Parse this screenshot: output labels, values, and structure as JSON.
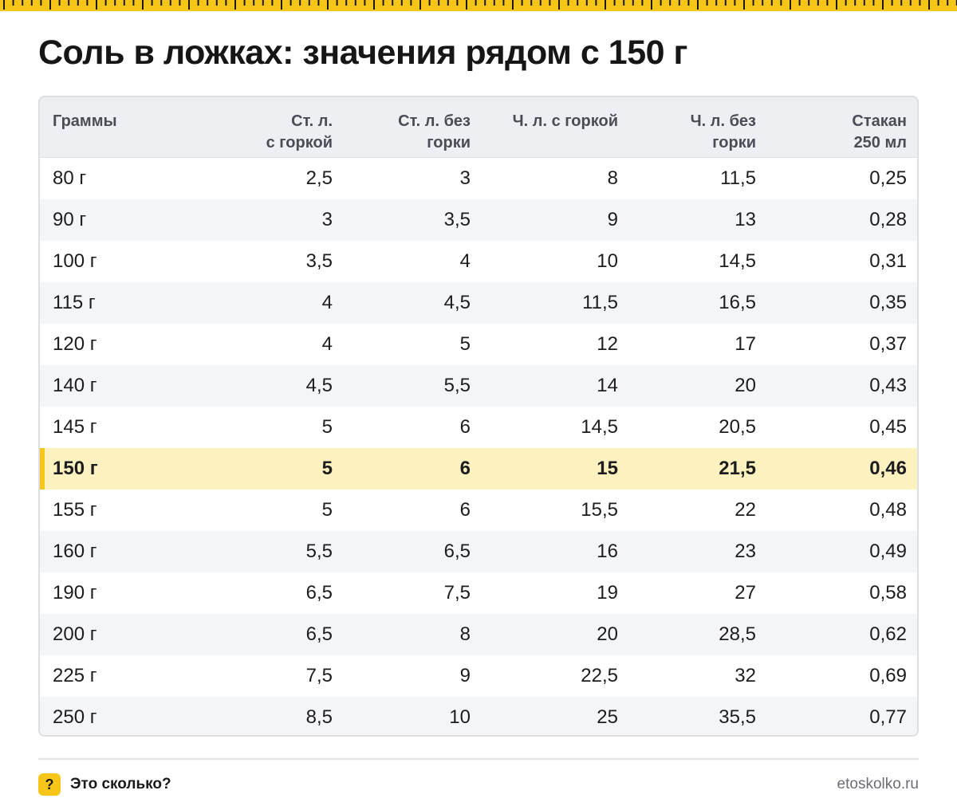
{
  "title": "Соль в ложках: значения рядом с 150 г",
  "colors": {
    "accent": "#f5c518",
    "highlight_row": "#fdf1bf",
    "header_bg": "#eeeff2"
  },
  "table": {
    "headers": [
      [
        "Граммы"
      ],
      [
        "Ст. л.",
        "с горкой"
      ],
      [
        "Ст. л. без",
        "горки"
      ],
      [
        "Ч. л. с горкой"
      ],
      [
        "Ч. л. без",
        "горки"
      ],
      [
        "Стакан",
        "250 мл"
      ]
    ],
    "highlighted_row": "150 г",
    "rows": [
      [
        "80 г",
        "2,5",
        "3",
        "8",
        "11,5",
        "0,25"
      ],
      [
        "90 г",
        "3",
        "3,5",
        "9",
        "13",
        "0,28"
      ],
      [
        "100 г",
        "3,5",
        "4",
        "10",
        "14,5",
        "0,31"
      ],
      [
        "115 г",
        "4",
        "4,5",
        "11,5",
        "16,5",
        "0,35"
      ],
      [
        "120 г",
        "4",
        "5",
        "12",
        "17",
        "0,37"
      ],
      [
        "140 г",
        "4,5",
        "5,5",
        "14",
        "20",
        "0,43"
      ],
      [
        "145 г",
        "5",
        "6",
        "14,5",
        "20,5",
        "0,45"
      ],
      [
        "150 г",
        "5",
        "6",
        "15",
        "21,5",
        "0,46"
      ],
      [
        "155 г",
        "5",
        "6",
        "15,5",
        "22",
        "0,48"
      ],
      [
        "160 г",
        "5,5",
        "6,5",
        "16",
        "23",
        "0,49"
      ],
      [
        "190 г",
        "6,5",
        "7,5",
        "19",
        "27",
        "0,58"
      ],
      [
        "200 г",
        "6,5",
        "8",
        "20",
        "28,5",
        "0,62"
      ],
      [
        "225 г",
        "7,5",
        "9",
        "22,5",
        "32",
        "0,69"
      ],
      [
        "250 г",
        "8,5",
        "10",
        "25",
        "35,5",
        "0,77"
      ]
    ]
  },
  "footer": {
    "icon": "question-mark-icon",
    "icon_glyph": "?",
    "brand": "Это сколько?",
    "site": "etoskolko.ru"
  }
}
